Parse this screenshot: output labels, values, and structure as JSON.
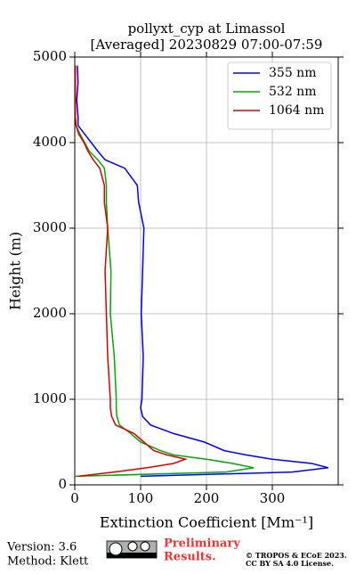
{
  "chart_data": {
    "type": "profile",
    "title": "pollyxt_cyp at Limassol",
    "subtitle": "[Averaged] 20230829 07:00-07:59",
    "x_label": "Extinction Coefficient [Mm⁻¹]",
    "y_label": "Height (m)",
    "heights": [
      100,
      150,
      200,
      250,
      300,
      350,
      400,
      500,
      600,
      700,
      800,
      900,
      1000,
      1500,
      2000,
      2500,
      3000,
      3300,
      3500,
      3700,
      3800,
      3900,
      4000,
      4100,
      4200,
      4300,
      4500,
      4700,
      4900
    ],
    "series": [
      {
        "name": "355 nm",
        "color": "#0000ff",
        "values": [
          100,
          330,
          385,
          360,
          300,
          260,
          227,
          197,
          150,
          115,
          103,
          100,
          102,
          104,
          101,
          103,
          105,
          97,
          95,
          76,
          46,
          35,
          25,
          15,
          5,
          5,
          3,
          5,
          4
        ]
      },
      {
        "name": "532 nm",
        "color": "#00aa00",
        "values": [
          0,
          230,
          272,
          240,
          200,
          150,
          130,
          100,
          85,
          68,
          64,
          63,
          63,
          60,
          54,
          55,
          50,
          48,
          48,
          45,
          35,
          22,
          15,
          8,
          2,
          1,
          1,
          1,
          1
        ]
      },
      {
        "name": "1064 nm",
        "color": "#dd0000",
        "values": [
          5,
          60,
          110,
          150,
          168,
          140,
          120,
          105,
          90,
          62,
          56,
          54,
          54,
          50,
          48,
          46,
          50,
          45,
          45,
          38,
          28,
          20,
          14,
          6,
          2,
          1,
          1,
          1,
          1
        ]
      }
    ],
    "xlim": [
      0,
      400
    ],
    "xticks": [
      0,
      100,
      200,
      300
    ],
    "ylim": [
      0,
      5000
    ],
    "yticks": [
      0,
      1000,
      2000,
      3000,
      4000,
      5000
    ],
    "grid": true,
    "legend": "upper right"
  },
  "footer": {
    "version": "Version: 3.6",
    "method": "Method: Klett",
    "preliminary": [
      "Preliminary",
      "Results."
    ],
    "copyright": [
      "© TROPOS & ECoE 2023.",
      "CC BY SA 4.0 License."
    ]
  }
}
